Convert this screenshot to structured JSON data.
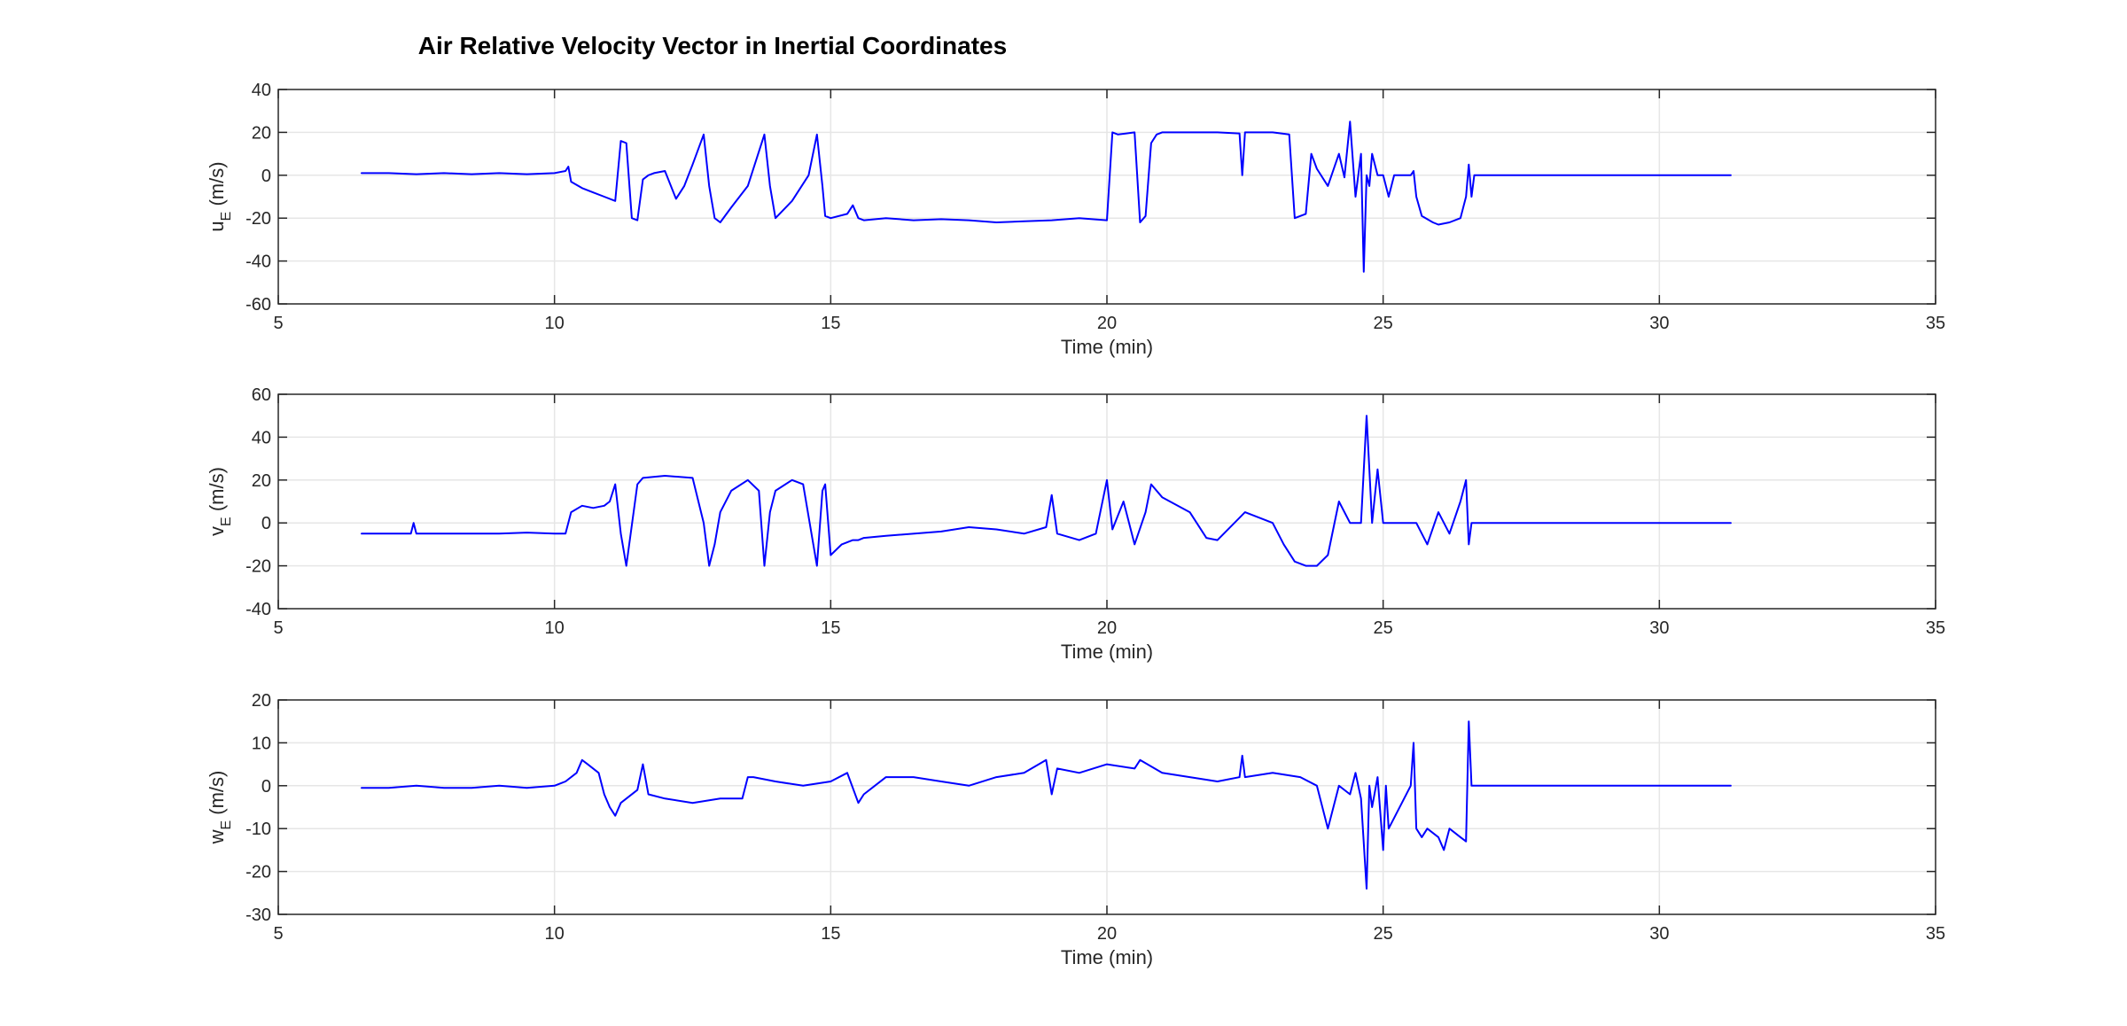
{
  "figure": {
    "title": "Air Relative Velocity Vector in Inertial Coordinates"
  },
  "colors": {
    "series": "#0000ff",
    "axes": "#262626",
    "grid": "#e6e6e6",
    "background": "#ffffff"
  },
  "chart_data": [
    {
      "type": "line",
      "title": "",
      "xlabel": "Time (min)",
      "ylabel_main": "u",
      "ylabel_sub": "E",
      "ylabel_unit": "(m/s)",
      "xlim": [
        5,
        35
      ],
      "ylim": [
        -60,
        40
      ],
      "xticks": [
        5,
        10,
        15,
        20,
        25,
        30,
        35
      ],
      "yticks": [
        -60,
        -40,
        -20,
        0,
        20,
        40
      ],
      "grid": true,
      "series": [
        {
          "x": [
            6.5,
            7.0,
            7.5,
            8.0,
            8.5,
            9.0,
            9.5,
            10.0,
            10.2,
            10.25,
            10.3,
            10.5,
            10.7,
            10.9,
            11.1,
            11.2,
            11.3,
            11.4,
            11.5,
            11.6,
            11.7,
            11.8,
            12.0,
            12.2,
            12.35,
            12.5,
            12.7,
            12.8,
            12.9,
            13.0,
            13.2,
            13.5,
            13.8,
            13.9,
            14.0,
            14.3,
            14.6,
            14.75,
            14.85,
            14.9,
            15.0,
            15.3,
            15.4,
            15.5,
            15.6,
            16.0,
            16.5,
            17.0,
            17.5,
            18.0,
            18.5,
            19.0,
            19.5,
            20.0,
            20.1,
            20.2,
            20.5,
            20.6,
            20.7,
            20.8,
            20.9,
            21.0,
            21.5,
            22.0,
            22.4,
            22.45,
            22.5,
            23.0,
            23.3,
            23.4,
            23.6,
            23.7,
            23.8,
            24.0,
            24.2,
            24.3,
            24.4,
            24.5,
            24.6,
            24.65,
            24.7,
            24.75,
            24.8,
            24.9,
            25.0,
            25.1,
            25.2,
            25.5,
            25.55,
            25.6,
            25.7,
            25.9,
            26.0,
            26.2,
            26.4,
            26.5,
            26.55,
            26.6,
            26.65,
            31.3
          ],
          "y": [
            1,
            1,
            0.5,
            1,
            0.5,
            1,
            0.5,
            1,
            2,
            4,
            -3,
            -6,
            -8,
            -10,
            -12,
            16,
            15,
            -20,
            -21,
            -2,
            0,
            1,
            2,
            -11,
            -5,
            5,
            19,
            -5,
            -20,
            -22,
            -15,
            -5,
            19,
            -5,
            -20,
            -12,
            0,
            19,
            -5,
            -19,
            -20,
            -18,
            -14,
            -20,
            -21,
            -20,
            -21,
            -20.5,
            -21,
            -22,
            -21.5,
            -21,
            -20,
            -21,
            20,
            19,
            20,
            -22,
            -19,
            15,
            19,
            20,
            20,
            20,
            19.5,
            0,
            20,
            20,
            19,
            -20,
            -18,
            10,
            3,
            -5,
            10,
            -1,
            25,
            -10,
            10,
            -45,
            0,
            -5,
            10,
            0,
            0,
            -10,
            0,
            0,
            2,
            -10,
            -19,
            -22,
            -23,
            -22,
            -20,
            -10,
            5,
            -10,
            0,
            0
          ]
        }
      ]
    },
    {
      "type": "line",
      "title": "",
      "xlabel": "Time (min)",
      "ylabel_main": "v",
      "ylabel_sub": "E",
      "ylabel_unit": "(m/s)",
      "xlim": [
        5,
        35
      ],
      "ylim": [
        -40,
        60
      ],
      "xticks": [
        5,
        10,
        15,
        20,
        25,
        30,
        35
      ],
      "yticks": [
        -40,
        -20,
        0,
        20,
        40,
        60
      ],
      "grid": true,
      "series": [
        {
          "x": [
            6.5,
            7.0,
            7.4,
            7.45,
            7.5,
            8.0,
            8.5,
            9.0,
            9.5,
            10.0,
            10.2,
            10.3,
            10.5,
            10.7,
            10.9,
            11.0,
            11.1,
            11.2,
            11.3,
            11.5,
            11.6,
            12.0,
            12.5,
            12.7,
            12.8,
            12.9,
            13.0,
            13.2,
            13.5,
            13.7,
            13.8,
            13.9,
            14.0,
            14.3,
            14.5,
            14.75,
            14.85,
            14.9,
            15.0,
            15.2,
            15.4,
            15.5,
            15.6,
            16.0,
            17.0,
            17.5,
            18.0,
            18.5,
            18.9,
            19.0,
            19.1,
            19.5,
            19.8,
            20.0,
            20.1,
            20.3,
            20.5,
            20.7,
            20.8,
            21.0,
            21.5,
            21.8,
            22.0,
            22.5,
            23.0,
            23.2,
            23.4,
            23.6,
            23.8,
            24.0,
            24.2,
            24.4,
            24.6,
            24.7,
            24.8,
            24.9,
            25.0,
            25.2,
            25.6,
            25.8,
            26.0,
            26.2,
            26.4,
            26.5,
            26.55,
            26.6,
            31.3
          ],
          "y": [
            -5,
            -5,
            -5,
            0,
            -5,
            -5,
            -5,
            -5,
            -4.5,
            -5,
            -5,
            5,
            8,
            7,
            8,
            10,
            18,
            -5,
            -20,
            18,
            21,
            22,
            21,
            0,
            -20,
            -10,
            5,
            15,
            20,
            15,
            -20,
            5,
            15,
            20,
            18,
            -20,
            15,
            18,
            -15,
            -10,
            -8,
            -8,
            -7,
            -6,
            -4,
            -2,
            -3,
            -5,
            -2,
            13,
            -5,
            -8,
            -5,
            20,
            -3,
            10,
            -10,
            5,
            18,
            12,
            5,
            -7,
            -8,
            5,
            0,
            -10,
            -18,
            -20,
            -20,
            -15,
            10,
            0,
            0,
            50,
            0,
            25,
            0,
            0,
            0,
            -10,
            5,
            -5,
            10,
            20,
            -10,
            0,
            0
          ]
        }
      ]
    },
    {
      "type": "line",
      "title": "",
      "xlabel": "Time (min)",
      "ylabel_main": "w",
      "ylabel_sub": "E",
      "ylabel_unit": "(m/s)",
      "xlim": [
        5,
        35
      ],
      "ylim": [
        -30,
        20
      ],
      "xticks": [
        5,
        10,
        15,
        20,
        25,
        30,
        35
      ],
      "yticks": [
        -30,
        -20,
        -10,
        0,
        10,
        20
      ],
      "grid": true,
      "series": [
        {
          "x": [
            6.5,
            7.0,
            7.5,
            8.0,
            8.5,
            9.0,
            9.5,
            10.0,
            10.2,
            10.4,
            10.5,
            10.6,
            10.7,
            10.8,
            10.9,
            11.0,
            11.1,
            11.2,
            11.5,
            11.6,
            11.7,
            12.0,
            12.5,
            13.0,
            13.4,
            13.5,
            13.6,
            14.0,
            14.5,
            15.0,
            15.3,
            15.5,
            15.6,
            16.0,
            16.5,
            17.0,
            17.5,
            18.0,
            18.5,
            18.9,
            19.0,
            19.1,
            19.5,
            20.0,
            20.5,
            20.6,
            21.0,
            21.5,
            22.0,
            22.4,
            22.45,
            22.5,
            23.0,
            23.5,
            23.8,
            24.0,
            24.2,
            24.4,
            24.5,
            24.6,
            24.7,
            24.75,
            24.8,
            24.9,
            25.0,
            25.05,
            25.1,
            25.5,
            25.55,
            25.6,
            25.7,
            25.8,
            26.0,
            26.1,
            26.2,
            26.4,
            26.5,
            26.55,
            26.6,
            31.3
          ],
          "y": [
            -0.5,
            -0.5,
            0,
            -0.5,
            -0.5,
            0,
            -0.5,
            0,
            1,
            3,
            6,
            5,
            4,
            3,
            -2,
            -5,
            -7,
            -4,
            -1,
            5,
            -2,
            -3,
            -4,
            -3,
            -3,
            2,
            2,
            1,
            0,
            1,
            3,
            -4,
            -2,
            2,
            2,
            1,
            0,
            2,
            3,
            6,
            -2,
            4,
            3,
            5,
            4,
            6,
            3,
            2,
            1,
            2,
            7,
            2,
            3,
            2,
            0,
            -10,
            0,
            -2,
            3,
            -3,
            -24,
            0,
            -5,
            2,
            -15,
            0,
            -10,
            0,
            10,
            -10,
            -12,
            -10,
            -12,
            -15,
            -10,
            -12,
            -13,
            15,
            0,
            0
          ]
        }
      ]
    }
  ]
}
